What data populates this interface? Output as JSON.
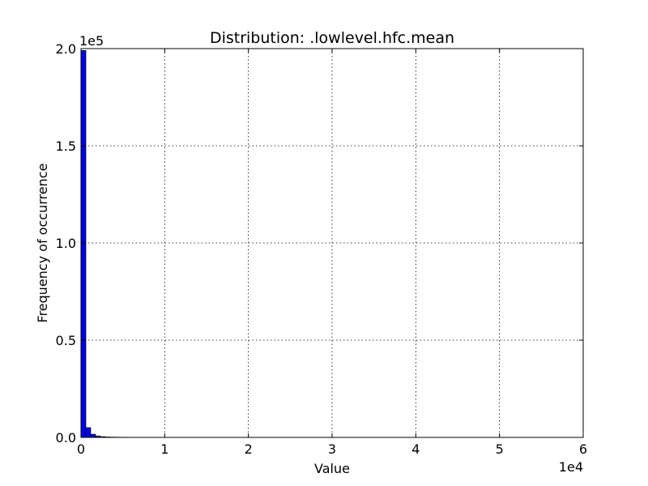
{
  "chart_data": {
    "type": "bar",
    "title": "Distribution: .lowlevel.hfc.mean",
    "xlabel": "Value",
    "ylabel": "Frequency of occurrence",
    "x_multiplier_label": "1e4",
    "y_multiplier_label": "1e5",
    "xlim": [
      0,
      60000
    ],
    "ylim": [
      0,
      200000
    ],
    "x_ticks": [
      0,
      10000,
      20000,
      30000,
      40000,
      50000,
      60000
    ],
    "x_tick_labels": [
      "0",
      "1",
      "2",
      "3",
      "4",
      "5",
      "6"
    ],
    "y_ticks": [
      0,
      50000,
      100000,
      150000,
      200000
    ],
    "y_tick_labels": [
      "0.0",
      "0.5",
      "1.0",
      "1.5",
      "2.0"
    ],
    "grid": true,
    "bar_color": "#0000ee",
    "bin_edges": [
      0,
      576,
      1152,
      1728,
      2304,
      2880,
      3456,
      4032,
      4608,
      5184,
      5760,
      6336,
      6912,
      7488,
      8064,
      8640,
      9216,
      9792,
      10368,
      10944,
      11520,
      12096,
      12672,
      13248,
      13824,
      14400,
      14976,
      15552,
      16128,
      16704,
      17280,
      17856,
      18432,
      19008,
      19584,
      20160,
      20736,
      21312,
      21888,
      22464,
      23040,
      23616,
      24192,
      24768,
      25344,
      25920,
      26496,
      27072,
      27648,
      28224,
      28800,
      29376,
      29952,
      30528,
      31104,
      31680,
      32256,
      32832,
      33408,
      33984,
      34560,
      35136,
      35712,
      36288,
      36864,
      37440,
      38016,
      38592,
      39168,
      39744,
      40320,
      40896,
      41472,
      42048,
      42624,
      43200,
      43776,
      44352,
      44928,
      45504,
      46080,
      46656,
      47232,
      47808,
      48384,
      48960,
      49536,
      50112,
      50688,
      51264,
      51840,
      52416,
      52992,
      53568,
      54144,
      54720,
      55296,
      55872,
      56448,
      57024,
      57600
    ],
    "values": [
      199000,
      5000,
      1600,
      700,
      350,
      200,
      130,
      90,
      60,
      45,
      35,
      28,
      22,
      18,
      15,
      12,
      10,
      9,
      8,
      7,
      6,
      5,
      5,
      4,
      4,
      3,
      3,
      3,
      2,
      2,
      2,
      2,
      2,
      1,
      1,
      1,
      1,
      1,
      1,
      1,
      1,
      1,
      1,
      1,
      1,
      1,
      1,
      1,
      1,
      1,
      1,
      1,
      1,
      1,
      1,
      1,
      1,
      1,
      1,
      1,
      1,
      1,
      1,
      1,
      1,
      1,
      1,
      1,
      1,
      1,
      1,
      1,
      1,
      1,
      1,
      1,
      1,
      1,
      1,
      1,
      1,
      1,
      1,
      1,
      1,
      1,
      1,
      1,
      1,
      1,
      1,
      1,
      1,
      1,
      1,
      1,
      1,
      1,
      1,
      1
    ]
  }
}
